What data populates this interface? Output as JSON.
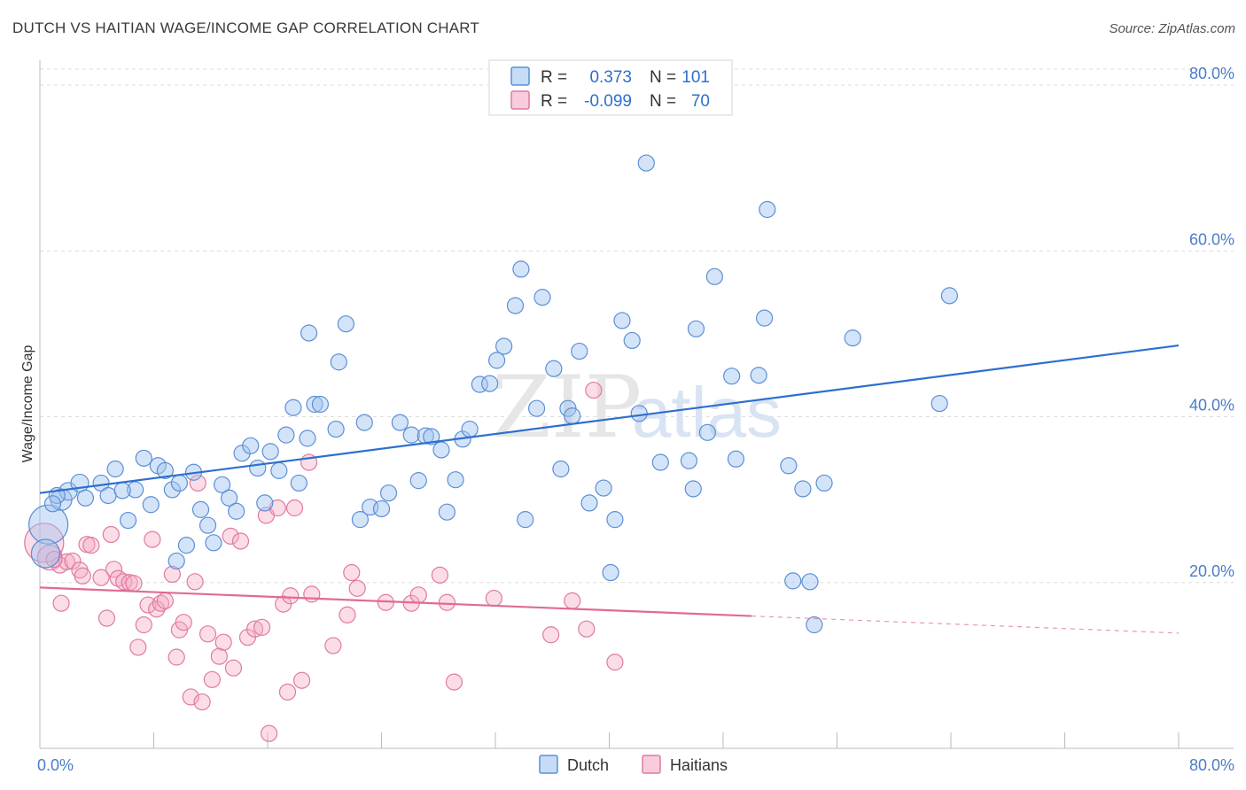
{
  "title": "DUTCH VS HAITIAN WAGE/INCOME GAP CORRELATION CHART",
  "source": "Source: ZipAtlas.com",
  "watermark": {
    "zip": "ZIP",
    "atlas": "atlas"
  },
  "colors": {
    "dutch": "#5b8fd6",
    "dutch_fill": "rgba(160,196,240,0.45)",
    "dutch_line": "#2e6fce",
    "haitians": "#e07aa0",
    "haitians_fill": "rgba(244,170,196,0.40)",
    "haitians_line": "#e06a98",
    "tick_text": "#4a7cc9",
    "grid": "#dddddd"
  },
  "legend": {
    "dutch": {
      "r_label": "R =",
      "r_value": "0.373",
      "n_label": "N =",
      "n_value": "101"
    },
    "haitians": {
      "r_label": "R =",
      "r_value": "-0.099",
      "n_label": "N =",
      "n_value": "70"
    }
  },
  "chart_data": {
    "type": "scatter",
    "title": "DUTCH VS HAITIAN WAGE/INCOME GAP CORRELATION CHART",
    "xlabel": "",
    "ylabel": "Wage/Income Gap",
    "xlim": [
      0,
      80
    ],
    "ylim": [
      0,
      83
    ],
    "x_tick_labels": [
      "0.0%",
      "80.0%"
    ],
    "y_ticks": [
      20,
      40,
      60,
      80
    ],
    "y_tick_labels": [
      "20.0%",
      "40.0%",
      "60.0%",
      "80.0%"
    ],
    "grid": true,
    "legend_position": "bottom-center",
    "series": [
      {
        "name": "Dutch",
        "trend": {
          "x": [
            0,
            80
          ],
          "y": [
            30.8,
            48.6
          ],
          "dashed_from": null
        },
        "points": [
          [
            0.6,
            27,
            22
          ],
          [
            0.4,
            23.5,
            16
          ],
          [
            1.5,
            30,
            12
          ],
          [
            2,
            31,
            10
          ],
          [
            2.8,
            32,
            10
          ],
          [
            3.2,
            30.2,
            9
          ],
          [
            4.3,
            32,
            9
          ],
          [
            4.8,
            30.5,
            9
          ],
          [
            5.3,
            33.7,
            9
          ],
          [
            6.2,
            27.5,
            9
          ],
          [
            6.7,
            31.2,
            9
          ],
          [
            7.3,
            35,
            9
          ],
          [
            7.8,
            29.4,
            9
          ],
          [
            8.3,
            34.1,
            9
          ],
          [
            8.8,
            33.5,
            9
          ],
          [
            9.3,
            31.2,
            9
          ],
          [
            9.8,
            32,
            9
          ],
          [
            10.3,
            24.5,
            9
          ],
          [
            10.8,
            33.3,
            9
          ],
          [
            11.3,
            28.8,
            9
          ],
          [
            11.8,
            26.9,
            9
          ],
          [
            12.2,
            24.8,
            9
          ],
          [
            12.8,
            31.8,
            9
          ],
          [
            13.3,
            30.2,
            9
          ],
          [
            13.8,
            28.6,
            9
          ],
          [
            14.2,
            35.6,
            9
          ],
          [
            14.8,
            36.5,
            9
          ],
          [
            15.3,
            33.8,
            9
          ],
          [
            15.8,
            29.6,
            9
          ],
          [
            16.2,
            35.8,
            9
          ],
          [
            16.8,
            33.5,
            9
          ],
          [
            17.3,
            37.8,
            9
          ],
          [
            17.8,
            41.1,
            9
          ],
          [
            18.9,
            50.1,
            9
          ],
          [
            18.2,
            32,
            9
          ],
          [
            18.8,
            37.4,
            9
          ],
          [
            19.3,
            41.5,
            9
          ],
          [
            19.7,
            41.5,
            9
          ],
          [
            21,
            46.6,
            9
          ],
          [
            21.5,
            51.2,
            9
          ],
          [
            22.5,
            27.6,
            9
          ],
          [
            22.8,
            39.3,
            9
          ],
          [
            23.2,
            29.1,
            9
          ],
          [
            24,
            28.9,
            9
          ],
          [
            24.5,
            30.8,
            9
          ],
          [
            25.3,
            39.3,
            9
          ],
          [
            26.1,
            37.8,
            9
          ],
          [
            26.6,
            32.3,
            9
          ],
          [
            27.1,
            37.7,
            9
          ],
          [
            27.5,
            37.6,
            9
          ],
          [
            28.2,
            36,
            9
          ],
          [
            28.6,
            28.5,
            9
          ],
          [
            29.2,
            32.4,
            9
          ],
          [
            29.7,
            37.3,
            9
          ],
          [
            30.2,
            38.5,
            9
          ],
          [
            30.9,
            43.9,
            9
          ],
          [
            31.6,
            44,
            9
          ],
          [
            32.1,
            46.8,
            9
          ],
          [
            32.6,
            48.5,
            9
          ],
          [
            33.4,
            53.4,
            9
          ],
          [
            33.8,
            57.8,
            9
          ],
          [
            34.1,
            27.6,
            9
          ],
          [
            34.9,
            41,
            9
          ],
          [
            35.3,
            54.4,
            9
          ],
          [
            36.1,
            45.8,
            9
          ],
          [
            36.6,
            33.7,
            9
          ],
          [
            37.1,
            41,
            9
          ],
          [
            37.4,
            40.1,
            9
          ],
          [
            37.9,
            47.9,
            9
          ],
          [
            38.6,
            29.6,
            9
          ],
          [
            39.6,
            31.4,
            9
          ],
          [
            40.1,
            21.2,
            9
          ],
          [
            40.4,
            27.6,
            9
          ],
          [
            40.9,
            51.6,
            9
          ],
          [
            41.6,
            49.2,
            9
          ],
          [
            42.1,
            40.4,
            9
          ],
          [
            42.6,
            70.6,
            9
          ],
          [
            43.6,
            34.5,
            9
          ],
          [
            45.6,
            34.7,
            9
          ],
          [
            45.9,
            31.3,
            9
          ],
          [
            46.1,
            50.6,
            9
          ],
          [
            46.9,
            38.1,
            9
          ],
          [
            47.4,
            56.9,
            9
          ],
          [
            48.6,
            44.9,
            9
          ],
          [
            48.9,
            34.9,
            9
          ],
          [
            50.5,
            45,
            9
          ],
          [
            50.9,
            51.9,
            9
          ],
          [
            51.1,
            65,
            9
          ],
          [
            52.6,
            34.1,
            9
          ],
          [
            52.9,
            20.2,
            9
          ],
          [
            53.6,
            31.3,
            9
          ],
          [
            54.1,
            20.1,
            9
          ],
          [
            54.4,
            14.9,
            9
          ],
          [
            55.1,
            32,
            9
          ],
          [
            57.1,
            49.5,
            9
          ],
          [
            63.2,
            41.6,
            9
          ],
          [
            63.9,
            54.6,
            9
          ],
          [
            1.2,
            30.5,
            9
          ],
          [
            5.8,
            31.1,
            9
          ],
          [
            9.6,
            22.6,
            9
          ],
          [
            20.8,
            38.5,
            9
          ],
          [
            0.9,
            29.5,
            9
          ]
        ]
      },
      {
        "name": "Haitians",
        "trend": {
          "x": [
            0,
            80
          ],
          "y": [
            19.4,
            13.9
          ],
          "dashed_from": 50
        },
        "points": [
          [
            0.3,
            24.8,
            22
          ],
          [
            0.7,
            23,
            14
          ],
          [
            1.4,
            22.1,
            9
          ],
          [
            1.5,
            17.5,
            9
          ],
          [
            1.9,
            22.5,
            9
          ],
          [
            2.3,
            22.6,
            9
          ],
          [
            2.8,
            21.5,
            9
          ],
          [
            3,
            20.8,
            9
          ],
          [
            3.3,
            24.6,
            9
          ],
          [
            3.6,
            24.5,
            9
          ],
          [
            4.3,
            20.6,
            9
          ],
          [
            4.7,
            15.7,
            9
          ],
          [
            5,
            25.8,
            9
          ],
          [
            5.2,
            21.6,
            9
          ],
          [
            5.5,
            20.5,
            9
          ],
          [
            5.9,
            20.1,
            9
          ],
          [
            6.3,
            20,
            9
          ],
          [
            6.6,
            19.9,
            9
          ],
          [
            6.9,
            12.2,
            9
          ],
          [
            7.3,
            14.9,
            9
          ],
          [
            7.6,
            17.3,
            9
          ],
          [
            7.9,
            25.2,
            9
          ],
          [
            8.2,
            16.8,
            9
          ],
          [
            8.5,
            17.5,
            9
          ],
          [
            8.8,
            17.8,
            9
          ],
          [
            9.3,
            21,
            9
          ],
          [
            9.6,
            11,
            9
          ],
          [
            9.8,
            14.3,
            9
          ],
          [
            10.1,
            15.2,
            9
          ],
          [
            10.6,
            6.2,
            9
          ],
          [
            10.9,
            20.1,
            9
          ],
          [
            11.1,
            32,
            9
          ],
          [
            11.4,
            5.6,
            9
          ],
          [
            11.8,
            13.8,
            9
          ],
          [
            12.1,
            8.3,
            9
          ],
          [
            12.6,
            11.1,
            9
          ],
          [
            12.9,
            12.8,
            9
          ],
          [
            13.4,
            25.6,
            9
          ],
          [
            13.6,
            9.7,
            9
          ],
          [
            14.1,
            25,
            9
          ],
          [
            14.6,
            13.4,
            9
          ],
          [
            15.1,
            14.4,
            9
          ],
          [
            15.6,
            14.6,
            9
          ],
          [
            15.9,
            28.1,
            9
          ],
          [
            16.1,
            1.8,
            9
          ],
          [
            16.7,
            29,
            9
          ],
          [
            17.1,
            17.4,
            9
          ],
          [
            17.4,
            6.8,
            9
          ],
          [
            17.6,
            18.4,
            9
          ],
          [
            17.9,
            29,
            9
          ],
          [
            18.4,
            8.2,
            9
          ],
          [
            18.9,
            34.5,
            9
          ],
          [
            19.1,
            18.6,
            9
          ],
          [
            20.6,
            12.4,
            9
          ],
          [
            21.6,
            16.1,
            9
          ],
          [
            21.9,
            21.2,
            9
          ],
          [
            22.3,
            19.3,
            9
          ],
          [
            24.3,
            17.6,
            9
          ],
          [
            26.1,
            17.5,
            9
          ],
          [
            26.6,
            18.5,
            9
          ],
          [
            28.1,
            20.9,
            9
          ],
          [
            28.6,
            17.6,
            9
          ],
          [
            29.1,
            8,
            9
          ],
          [
            31.9,
            18.1,
            9
          ],
          [
            35.9,
            13.7,
            9
          ],
          [
            37.4,
            17.8,
            9
          ],
          [
            38.4,
            14.4,
            9
          ],
          [
            38.9,
            43.2,
            9
          ],
          [
            40.4,
            10.4,
            9
          ],
          [
            1,
            22.8,
            9
          ]
        ]
      }
    ]
  },
  "bottom_legend": {
    "dutch": "Dutch",
    "haitians": "Haitians"
  }
}
